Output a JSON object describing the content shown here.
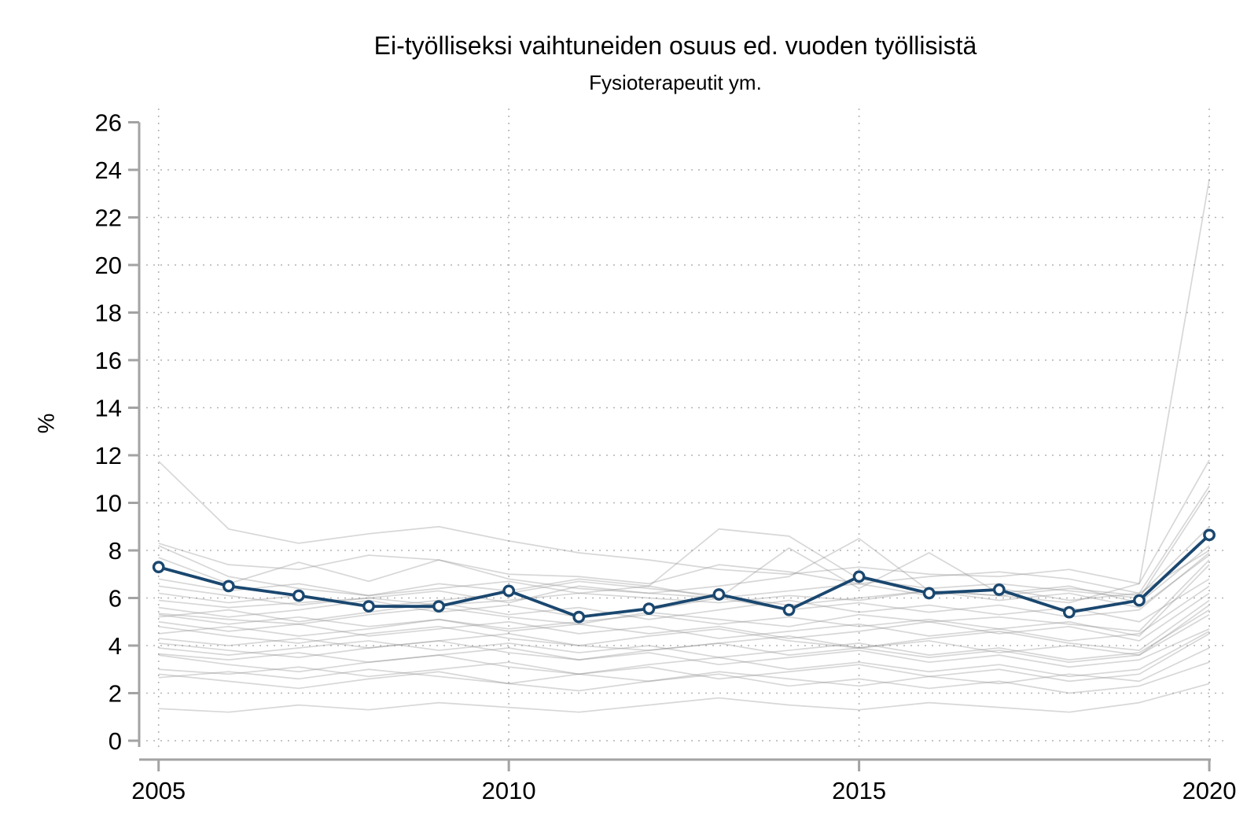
{
  "chart_data": {
    "type": "line",
    "title": "Ei-työlliseksi vaihtuneiden osuus ed. vuoden työllisistä",
    "subtitle": "Fysioterapeutit ym.",
    "ylabel": "%",
    "xlim": [
      2005,
      2020
    ],
    "ylim": [
      0,
      26
    ],
    "x": [
      2005,
      2006,
      2007,
      2008,
      2009,
      2010,
      2011,
      2012,
      2013,
      2014,
      2015,
      2016,
      2017,
      2018,
      2019,
      2020
    ],
    "x_tick_labels": [
      2005,
      2010,
      2015,
      2020
    ],
    "y_tick_labels": [
      0,
      2,
      4,
      6,
      8,
      10,
      12,
      14,
      16,
      18,
      20,
      22,
      24,
      26
    ],
    "y_gridlines": [
      0,
      2,
      4,
      6,
      8,
      10,
      12,
      14,
      16,
      18,
      20,
      22,
      24
    ],
    "grid": "dotted",
    "legend": "none",
    "colors": {
      "highlight": "#1a476f",
      "marker_fill": "#ffffff",
      "background_lines": "#8c8c8c",
      "grid": "#a8a8a8",
      "axis": "#a3a3a3"
    },
    "highlight_series": {
      "name": "Fysioterapeutit ym.",
      "values": [
        7.3,
        6.5,
        6.1,
        5.65,
        5.65,
        6.3,
        5.2,
        5.55,
        6.15,
        5.5,
        6.9,
        6.2,
        6.35,
        5.4,
        5.9,
        8.65
      ]
    },
    "background_series": [
      {
        "values": [
          11.75,
          8.9,
          8.3,
          8.7,
          9.0,
          8.4,
          7.9,
          7.6,
          7.2,
          7.0,
          7.3,
          7.0,
          6.9,
          7.2,
          6.6,
          11.8
        ]
      },
      {
        "values": [
          5.9,
          5.6,
          5.8,
          6.0,
          5.7,
          5.9,
          6.2,
          6.0,
          5.8,
          6.1,
          5.9,
          6.3,
          6.1,
          5.8,
          6.6,
          23.6
        ]
      },
      {
        "values": [
          8.3,
          7.4,
          7.2,
          7.8,
          7.6,
          7.0,
          6.9,
          6.6,
          7.4,
          7.1,
          6.6,
          6.9,
          7.1,
          6.8,
          6.2,
          10.7
        ]
      },
      {
        "values": [
          8.2,
          6.9,
          6.4,
          6.1,
          6.6,
          6.3,
          6.8,
          6.5,
          8.9,
          8.6,
          6.8,
          6.4,
          6.6,
          6.3,
          6.0,
          10.5
        ]
      },
      {
        "values": [
          7.7,
          6.6,
          7.5,
          6.7,
          7.6,
          6.8,
          6.4,
          6.2,
          6.5,
          6.9,
          8.5,
          6.3,
          6.1,
          6.4,
          6.1,
          9.0
        ]
      },
      {
        "values": [
          6.5,
          6.1,
          5.7,
          6.0,
          6.3,
          5.8,
          6.5,
          6.2,
          6.0,
          8.1,
          6.4,
          7.9,
          6.2,
          6.5,
          5.8,
          8.2
        ]
      },
      {
        "values": [
          6.2,
          5.8,
          6.1,
          5.6,
          5.9,
          6.2,
          6.7,
          6.4,
          6.1,
          5.7,
          6.0,
          6.3,
          5.9,
          6.2,
          5.6,
          7.8
        ]
      },
      {
        "values": [
          5.35,
          5.1,
          4.9,
          5.3,
          5.6,
          5.2,
          4.9,
          5.4,
          5.1,
          4.8,
          5.3,
          5.0,
          5.2,
          4.9,
          4.6,
          7.6
        ]
      },
      {
        "values": [
          5.3,
          4.9,
          5.2,
          4.8,
          5.1,
          4.7,
          5.0,
          5.3,
          4.9,
          5.2,
          4.8,
          5.1,
          4.7,
          5.0,
          4.4,
          7.4
        ]
      },
      {
        "values": [
          5.2,
          5.5,
          5.0,
          5.4,
          5.8,
          5.3,
          5.6,
          5.1,
          5.5,
          5.9,
          5.4,
          5.7,
          5.3,
          5.6,
          5.0,
          6.8
        ]
      },
      {
        "values": [
          5.0,
          4.6,
          4.9,
          4.4,
          4.7,
          5.0,
          4.5,
          4.8,
          4.3,
          4.6,
          4.9,
          4.4,
          4.7,
          4.2,
          4.5,
          6.5
        ]
      },
      {
        "values": [
          4.8,
          4.4,
          4.1,
          4.5,
          4.8,
          4.3,
          4.0,
          4.4,
          4.7,
          4.2,
          3.9,
          4.3,
          4.6,
          4.1,
          3.8,
          5.9
        ]
      },
      {
        "values": [
          4.3,
          4.0,
          4.3,
          3.9,
          4.2,
          4.5,
          4.0,
          3.8,
          4.1,
          4.4,
          3.9,
          4.2,
          3.7,
          4.0,
          3.6,
          5.7
        ]
      },
      {
        "values": [
          4.1,
          3.8,
          3.5,
          3.9,
          4.2,
          3.7,
          3.4,
          3.8,
          4.1,
          3.6,
          3.9,
          3.5,
          3.8,
          3.3,
          3.6,
          5.3
        ]
      },
      {
        "values": [
          3.65,
          3.4,
          3.7,
          3.3,
          3.6,
          3.9,
          3.4,
          3.7,
          3.2,
          3.5,
          3.8,
          3.3,
          3.6,
          3.1,
          3.4,
          4.7
        ]
      },
      {
        "values": [
          3.6,
          3.2,
          2.9,
          3.3,
          3.6,
          3.1,
          2.8,
          3.2,
          3.5,
          3.0,
          3.3,
          2.9,
          3.2,
          2.7,
          3.0,
          4.6
        ]
      },
      {
        "values": [
          3.0,
          2.8,
          3.1,
          2.7,
          3.0,
          3.3,
          2.8,
          3.1,
          2.6,
          2.9,
          3.2,
          2.7,
          3.0,
          2.5,
          2.8,
          4.5
        ]
      },
      {
        "values": [
          2.65,
          2.9,
          2.6,
          3.0,
          2.7,
          2.4,
          2.8,
          2.5,
          2.9,
          2.6,
          2.3,
          2.7,
          2.4,
          2.8,
          2.5,
          3.9
        ]
      },
      {
        "values": [
          2.8,
          2.5,
          2.2,
          2.6,
          2.9,
          2.4,
          2.1,
          2.5,
          2.8,
          2.3,
          2.6,
          2.2,
          2.5,
          2.0,
          2.3,
          3.3
        ]
      },
      {
        "values": [
          1.35,
          1.2,
          1.5,
          1.3,
          1.6,
          1.4,
          1.2,
          1.5,
          1.8,
          1.5,
          1.3,
          1.6,
          1.4,
          1.2,
          1.6,
          2.4
        ]
      },
      {
        "values": [
          4.5,
          4.8,
          4.4,
          4.7,
          5.1,
          4.6,
          4.9,
          4.5,
          4.8,
          4.3,
          4.6,
          5.0,
          4.5,
          4.8,
          4.2,
          6.2
        ]
      },
      {
        "values": [
          5.6,
          5.2,
          5.5,
          5.9,
          5.4,
          5.7,
          5.2,
          5.5,
          6.0,
          5.5,
          5.8,
          5.4,
          5.7,
          5.2,
          5.5,
          7.9
        ]
      },
      {
        "values": [
          3.9,
          3.6,
          3.9,
          4.2,
          3.8,
          4.1,
          3.7,
          4.0,
          3.5,
          3.8,
          4.1,
          3.6,
          3.9,
          3.4,
          3.7,
          5.5
        ]
      },
      {
        "values": [
          6.8,
          6.3,
          6.6,
          6.1,
          6.4,
          6.7,
          6.2,
          6.5,
          6.0,
          6.3,
          6.6,
          6.1,
          6.4,
          5.9,
          6.2,
          8.0
        ]
      }
    ]
  }
}
